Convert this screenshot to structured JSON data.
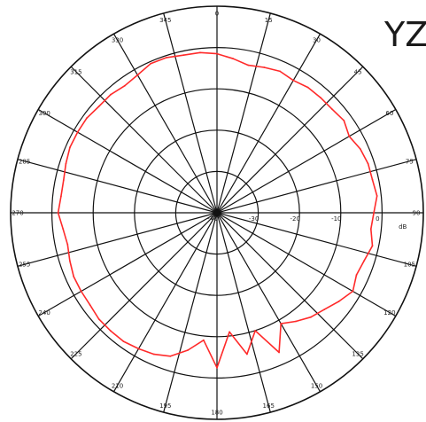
{
  "plane_label": "YZ",
  "colors": {
    "trace": "#ff2a2a",
    "grid": "#111111",
    "background": "#ffffff"
  },
  "chart_data": {
    "type": "polar-line",
    "title": "",
    "angle_ticks": [
      "0",
      "15",
      "30",
      "45",
      "60",
      "75",
      "90",
      "105",
      "120",
      "135",
      "150",
      "165",
      "180",
      "195",
      "210",
      "225",
      "240",
      "255",
      "270",
      "285",
      "300",
      "315",
      "330",
      "345"
    ],
    "angle_direction": "clockwise",
    "angle_zero": "top",
    "radial_ticks": [
      "-40",
      "-30",
      "-20",
      "-10",
      "0"
    ],
    "radial_unit": "dB",
    "rlim": [
      -40,
      10
    ],
    "grid": true,
    "series": [
      {
        "angles": [
          0,
          6,
          12,
          18,
          24,
          30,
          36,
          42,
          48,
          54,
          60,
          66,
          72,
          78,
          84,
          90,
          96,
          102,
          108,
          114,
          120,
          126,
          132,
          138,
          144,
          150,
          156,
          162,
          168,
          174,
          180,
          186,
          192,
          198,
          204,
          210,
          216,
          222,
          228,
          234,
          240,
          246,
          252,
          258,
          264,
          270,
          276,
          282,
          288,
          294,
          300,
          306,
          312,
          318,
          324,
          330,
          336,
          342,
          348,
          354
        ],
        "values": [
          -1.5,
          -2.5,
          -3.5,
          -3.0,
          -2.5,
          -3.0,
          -2.5,
          -2.5,
          -2.5,
          -2.0,
          -3.0,
          -2.0,
          -1.5,
          -1.5,
          -1.0,
          -2.0,
          -2.5,
          -1.5,
          -2.5,
          -3.0,
          -2.0,
          -3.5,
          -5.0,
          -6.0,
          -7.5,
          -9.0,
          -3.0,
          -10.0,
          -5.0,
          -11.0,
          -2.5,
          -9.0,
          -6.0,
          -3.5,
          -2.5,
          -2.0,
          -1.5,
          -1.5,
          -1.5,
          -2.0,
          -2.0,
          -2.0,
          -2.5,
          -3.0,
          -2.5,
          -1.5,
          -2.0,
          -2.0,
          -1.5,
          -1.0,
          -1.0,
          -1.0,
          -1.5,
          -1.5,
          -2.0,
          -1.5,
          -0.5,
          -0.5,
          -1.0,
          -1.0
        ]
      }
    ]
  }
}
